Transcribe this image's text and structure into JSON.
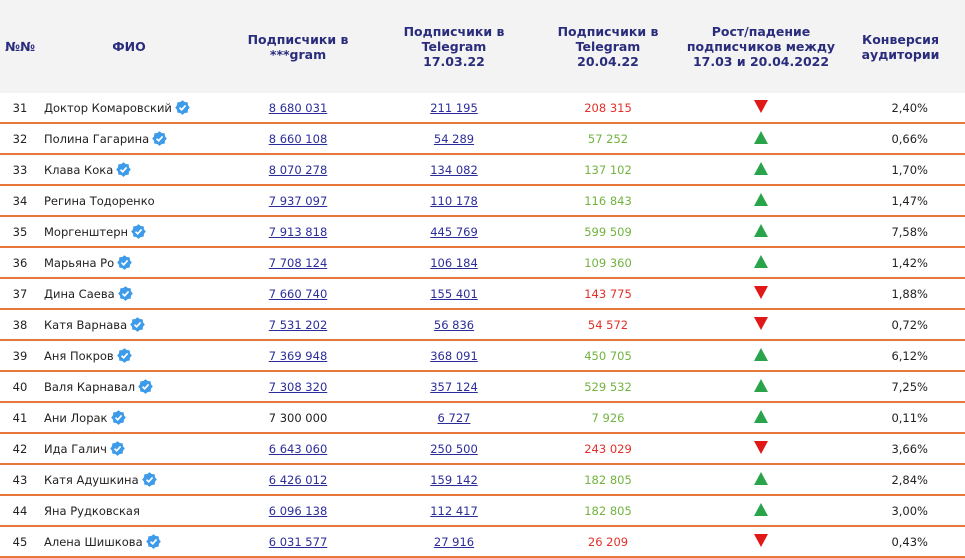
{
  "table": {
    "header": [
      "№№",
      "ФИО",
      "Подписчики в\n***gram",
      "Подписчики в\nTelegram\n17.03.22",
      "Подписчики в\nTelegram\n20.04.22",
      "Рост/падение\nподписчиков между\n17.03 и 20.04.2022",
      "Конверсия\nаудитории"
    ],
    "rows": [
      {
        "cells": [
          "31",
          "Доктор Комаровский",
          "8 680 031",
          "211 195",
          "208 315",
          "2,40%"
        ],
        "verified": true,
        "linked": true
      },
      {
        "cells": [
          "32",
          "Полина Гагарина",
          "8 660 108",
          "54 289",
          "57 252",
          "0,66%"
        ],
        "verified": true,
        "linked": true
      },
      {
        "cells": [
          "33",
          "Клава Кока",
          "8 070 278",
          "134 082",
          "137 102",
          "1,70%"
        ],
        "verified": true,
        "linked": true
      },
      {
        "cells": [
          "34",
          "Регина Тодоренко",
          "7 937 097",
          "110 178",
          "116 843",
          "1,47%"
        ],
        "verified": false,
        "linked": true
      },
      {
        "cells": [
          "35",
          "Моргенштерн",
          "7 913 818",
          "445 769",
          "599 509",
          "7,58%"
        ],
        "verified": true,
        "linked": true
      },
      {
        "cells": [
          "36",
          "Марьяна Ро",
          "7 708 124",
          "106 184",
          "109 360",
          "1,42%"
        ],
        "verified": true,
        "linked": true
      },
      {
        "cells": [
          "37",
          "Дина Саева",
          "7 660 740",
          "155 401",
          "143 775",
          "1,88%"
        ],
        "verified": true,
        "linked": true
      },
      {
        "cells": [
          "38",
          "Катя Варнава",
          "7 531 202",
          "56 836",
          "54 572",
          "0,72%"
        ],
        "verified": true,
        "linked": true
      },
      {
        "cells": [
          "39",
          "Аня Покров",
          "7 369 948",
          "368 091",
          "450 705",
          "6,12%"
        ],
        "verified": true,
        "linked": true
      },
      {
        "cells": [
          "40",
          "Валя Карнавал",
          "7 308 320",
          "357 124",
          "529 532",
          "7,25%"
        ],
        "verified": true,
        "linked": true
      },
      {
        "cells": [
          "41",
          "Ани Лорак",
          "7 300 000",
          "6 727",
          "7 926",
          "0,11%"
        ],
        "verified": true,
        "linked": false
      },
      {
        "cells": [
          "42",
          "Ида Галич",
          "6 643 060",
          "250 500",
          "243 029",
          "3,66%"
        ],
        "verified": true,
        "linked": true
      },
      {
        "cells": [
          "43",
          "Катя Адушкина",
          "6 426 012",
          "159 142",
          "182 805",
          "2,84%"
        ],
        "verified": true,
        "linked": true
      },
      {
        "cells": [
          "44",
          "Яна Рудковская",
          "6 096 138",
          "112 417",
          "182 805",
          "3,00%"
        ],
        "verified": false,
        "linked": true
      },
      {
        "cells": [
          "45",
          "Алена Шишкова",
          "6 031 577",
          "27 916",
          "26 209",
          "0,43%"
        ],
        "verified": true,
        "linked": true
      }
    ]
  }
}
